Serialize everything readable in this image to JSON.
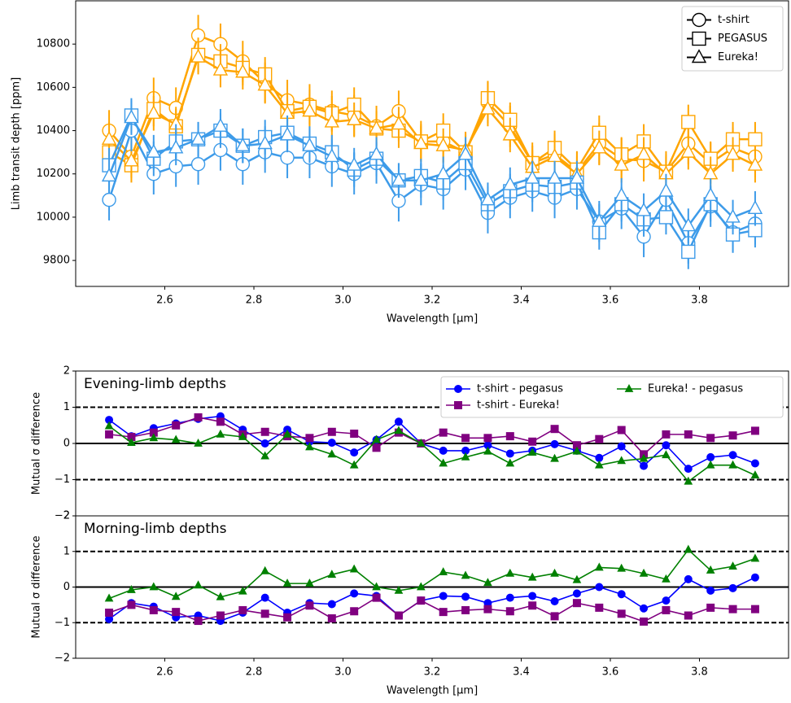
{
  "chart_data": [
    {
      "type": "line",
      "xlabel": "Wavelength [μm]",
      "ylabel": "Limb transit depth [ppm]",
      "x": [
        2.475,
        2.525,
        2.575,
        2.625,
        2.675,
        2.725,
        2.775,
        2.825,
        2.875,
        2.925,
        2.975,
        3.025,
        3.075,
        3.125,
        3.175,
        3.225,
        3.275,
        3.325,
        3.375,
        3.425,
        3.475,
        3.525,
        3.575,
        3.625,
        3.675,
        3.725,
        3.775,
        3.825,
        3.875,
        3.925
      ],
      "xlim": [
        2.4,
        4.0
      ],
      "xticks": [
        2.6,
        2.8,
        {
          "value": 3,
          "label": "3.0"
        },
        3.2,
        3.4,
        3.6,
        3.8
      ],
      "ylim": [
        9680,
        11000
      ],
      "yticks": [
        9800,
        10000,
        10200,
        10400,
        10600,
        10800
      ],
      "legend": "upper right",
      "marker_fill": "#ffffff",
      "series": [
        {
          "name": "t-shirt",
          "marker": "circle",
          "color": "#ffa500",
          "error": 95,
          "values": [
            10400,
            10280,
            10550,
            10505,
            10840,
            10800,
            10720,
            10620,
            10540,
            10520,
            10490,
            10470,
            10420,
            10490,
            10350,
            10350,
            10300,
            10530,
            10420,
            10250,
            10290,
            10210,
            10340,
            10270,
            10260,
            10210,
            10340,
            10250,
            10320,
            10280
          ]
        },
        {
          "name": "PEGASUS",
          "marker": "square",
          "color": "#ffa500",
          "error": 80,
          "values": [
            10300,
            10240,
            10500,
            10420,
            10750,
            10720,
            10690,
            10660,
            10490,
            10510,
            10480,
            10520,
            10410,
            10400,
            10350,
            10400,
            10300,
            10550,
            10450,
            10250,
            10320,
            10220,
            10390,
            10290,
            10350,
            10210,
            10440,
            10270,
            10360,
            10360
          ]
        },
        {
          "name": "Eureka!",
          "marker": "triangle",
          "color": "#ffa500",
          "error": 80,
          "values": [
            10360,
            10260,
            10480,
            10430,
            10740,
            10680,
            10670,
            10610,
            10480,
            10490,
            10440,
            10450,
            10410,
            10430,
            10340,
            10330,
            10310,
            10500,
            10380,
            10230,
            10280,
            10200,
            10320,
            10240,
            10290,
            10200,
            10300,
            10200,
            10290,
            10240
          ]
        },
        {
          "marker": "circle",
          "color": "#3d9be9",
          "error": 95,
          "values": [
            10080,
            10400,
            10200,
            10235,
            10245,
            10310,
            10245,
            10300,
            10275,
            10275,
            10235,
            10200,
            10250,
            10075,
            10150,
            10130,
            10220,
            10020,
            10090,
            10120,
            10090,
            10130,
            9980,
            10040,
            9910,
            10080,
            9880,
            10050,
            9930,
            9970
          ]
        },
        {
          "marker": "square",
          "color": "#3d9be9",
          "error": 80,
          "values": [
            10240,
            10470,
            10270,
            10350,
            10360,
            10400,
            10330,
            10370,
            10390,
            10340,
            10300,
            10220,
            10270,
            10170,
            10190,
            10160,
            10250,
            10060,
            10120,
            10150,
            10140,
            10160,
            9930,
            10060,
            9990,
            10000,
            9840,
            10060,
            9920,
            9940
          ]
        },
        {
          "marker": "triangle",
          "color": "#3d9be9",
          "error": 80,
          "values": [
            10190,
            10460,
            10300,
            10320,
            10360,
            10420,
            10330,
            10340,
            10380,
            10330,
            10280,
            10240,
            10290,
            10170,
            10170,
            10200,
            10290,
            10080,
            10150,
            10180,
            10180,
            10180,
            9980,
            10100,
            10030,
            10120,
            9960,
            10100,
            10000,
            10040
          ]
        }
      ]
    },
    {
      "type": "line",
      "ylabel": "Mutual σ difference",
      "annotation": {
        "text": "Evening-limb depths",
        "color": "#ffa500"
      },
      "x": [
        2.475,
        2.525,
        2.575,
        2.625,
        2.675,
        2.725,
        2.775,
        2.825,
        2.875,
        2.925,
        2.975,
        3.025,
        3.075,
        3.125,
        3.175,
        3.225,
        3.275,
        3.325,
        3.375,
        3.425,
        3.475,
        3.525,
        3.575,
        3.625,
        3.675,
        3.725,
        3.775,
        3.825,
        3.875,
        3.925
      ],
      "xlim": [
        2.4,
        4.0
      ],
      "ylim": [
        -2,
        2
      ],
      "yticks": [
        {
          "value": -2,
          "label": "−2"
        },
        {
          "value": -1,
          "label": "−1"
        },
        0,
        1,
        2
      ],
      "hlines": [
        {
          "value": 1,
          "style": "dashed"
        },
        {
          "value": 0,
          "style": "solid"
        },
        {
          "value": -1,
          "style": "dashed"
        }
      ],
      "legend": "upper right",
      "legend_columns": 2,
      "series": [
        {
          "name": "t-shirt - pegasus",
          "marker": "circle",
          "color": "#0000ff",
          "values": [
            0.65,
            0.2,
            0.42,
            0.55,
            0.68,
            0.75,
            0.38,
            0.0,
            0.38,
            0.05,
            0.02,
            -0.25,
            0.1,
            0.6,
            0.0,
            -0.2,
            -0.2,
            -0.05,
            -0.28,
            -0.2,
            -0.02,
            -0.2,
            -0.4,
            -0.08,
            -0.62,
            -0.05,
            -0.7,
            -0.38,
            -0.32,
            -0.55
          ]
        },
        {
          "name": "t-shirt - Eureka!",
          "marker": "square",
          "color": "#800080",
          "values": [
            0.25,
            0.18,
            0.3,
            0.5,
            0.72,
            0.6,
            0.25,
            0.32,
            0.2,
            0.15,
            0.32,
            0.27,
            -0.12,
            0.3,
            0.0,
            0.3,
            0.15,
            0.15,
            0.2,
            0.05,
            0.4,
            -0.05,
            0.12,
            0.37,
            -0.3,
            0.25,
            0.25,
            0.15,
            0.22,
            0.35
          ]
        },
        {
          "name": "Eureka! - pegasus",
          "marker": "triangle",
          "color": "#008000",
          "values": [
            0.48,
            0.02,
            0.15,
            0.1,
            0.0,
            0.25,
            0.18,
            -0.35,
            0.25,
            -0.1,
            -0.3,
            -0.6,
            0.1,
            0.35,
            0.0,
            -0.55,
            -0.38,
            -0.22,
            -0.55,
            -0.25,
            -0.42,
            -0.22,
            -0.6,
            -0.48,
            -0.42,
            -0.32,
            -1.05,
            -0.6,
            -0.6,
            -0.88
          ]
        }
      ]
    },
    {
      "type": "line",
      "xlabel": "Wavelength [μm]",
      "ylabel": "Mutual σ difference",
      "annotation": {
        "text": "Morning-limb depths",
        "color": "#3d9be9"
      },
      "x": [
        2.475,
        2.525,
        2.575,
        2.625,
        2.675,
        2.725,
        2.775,
        2.825,
        2.875,
        2.925,
        2.975,
        3.025,
        3.075,
        3.125,
        3.175,
        3.225,
        3.275,
        3.325,
        3.375,
        3.425,
        3.475,
        3.525,
        3.575,
        3.625,
        3.675,
        3.725,
        3.775,
        3.825,
        3.875,
        3.925
      ],
      "xlim": [
        2.4,
        4.0
      ],
      "xticks": [
        2.6,
        2.8,
        {
          "value": 3,
          "label": "3.0"
        },
        3.2,
        3.4,
        3.6,
        3.8
      ],
      "ylim": [
        -2,
        2
      ],
      "yticks": [
        {
          "value": -2,
          "label": "−2"
        },
        {
          "value": -1,
          "label": "−1"
        },
        0,
        1,
        2
      ],
      "hlines": [
        {
          "value": 1,
          "style": "dashed"
        },
        {
          "value": 0,
          "style": "solid"
        },
        {
          "value": -1,
          "style": "dashed"
        }
      ],
      "series": [
        {
          "marker": "circle",
          "color": "#0000ff",
          "values": [
            -0.9,
            -0.45,
            -0.55,
            -0.85,
            -0.8,
            -0.95,
            -0.72,
            -0.3,
            -0.72,
            -0.45,
            -0.48,
            -0.18,
            -0.25,
            -0.8,
            -0.38,
            -0.25,
            -0.27,
            -0.45,
            -0.3,
            -0.25,
            -0.4,
            -0.18,
            0.0,
            -0.2,
            -0.6,
            -0.38,
            0.22,
            -0.1,
            -0.03,
            0.27
          ]
        },
        {
          "marker": "square",
          "color": "#800080",
          "values": [
            -0.72,
            -0.5,
            -0.65,
            -0.7,
            -0.95,
            -0.8,
            -0.65,
            -0.75,
            -0.85,
            -0.52,
            -0.88,
            -0.68,
            -0.3,
            -0.8,
            -0.38,
            -0.7,
            -0.65,
            -0.62,
            -0.68,
            -0.52,
            -0.82,
            -0.45,
            -0.58,
            -0.75,
            -0.97,
            -0.65,
            -0.8,
            -0.58,
            -0.62,
            -0.62
          ]
        },
        {
          "marker": "triangle",
          "color": "#008000",
          "values": [
            -0.32,
            -0.08,
            0.0,
            -0.27,
            0.05,
            -0.28,
            -0.12,
            0.45,
            0.1,
            0.1,
            0.35,
            0.5,
            0.0,
            -0.1,
            0.0,
            0.42,
            0.32,
            0.12,
            0.38,
            0.27,
            0.38,
            0.2,
            0.55,
            0.52,
            0.38,
            0.22,
            1.05,
            0.47,
            0.58,
            0.8
          ]
        }
      ]
    }
  ]
}
